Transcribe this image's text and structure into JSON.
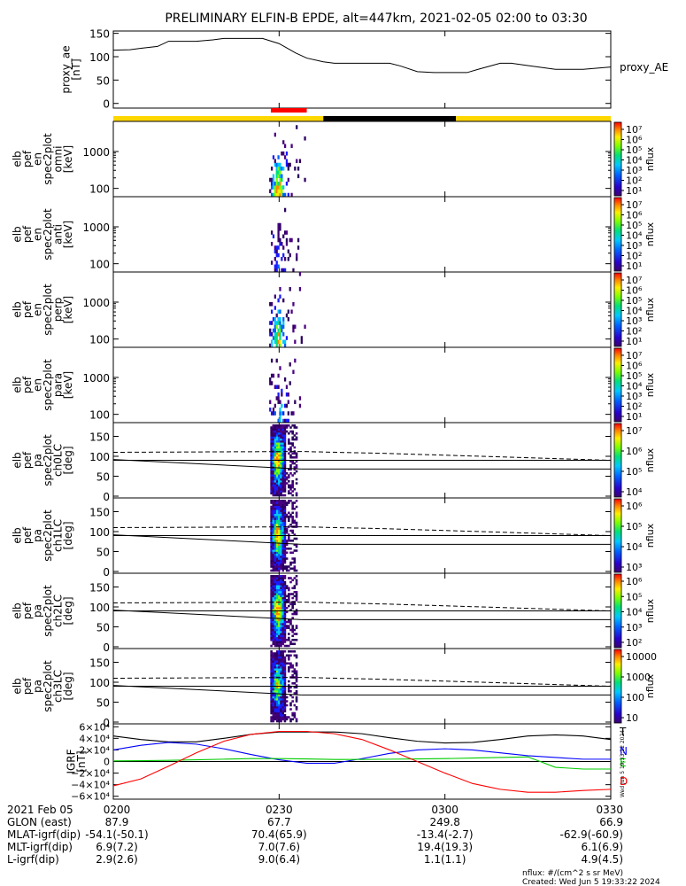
{
  "title": "PRELIMINARY ELFIN-B EPDE, alt=447km, 2021-02-05 02:00 to 03:30",
  "chart_data": {
    "type": "multi-panel time series / spectrograms",
    "time_range_minutes": [
      0,
      90
    ],
    "time_ticks": [
      {
        "t": 0,
        "label": "0200"
      },
      {
        "t": 30,
        "label": "0230"
      },
      {
        "t": 60,
        "label": "0300"
      },
      {
        "t": 90,
        "label": "0330"
      }
    ],
    "proxy_ae": {
      "ylabel": [
        "proxy_ae",
        "[nT]"
      ],
      "right_label": "proxy_AE",
      "ylim": [
        -10,
        155
      ],
      "yticks": [
        "0",
        "50",
        "100",
        "150"
      ],
      "yticks_values": [
        0,
        50,
        100,
        150
      ],
      "x": [
        0,
        3,
        5,
        8,
        10,
        15,
        18,
        20,
        22,
        25,
        27,
        30,
        33,
        35,
        38,
        40,
        45,
        47,
        50,
        52,
        55,
        58,
        60,
        62,
        64,
        66,
        70,
        72,
        75,
        80,
        85,
        90
      ],
      "y": [
        114,
        115,
        118,
        122,
        133,
        133,
        136,
        139,
        139,
        139,
        139,
        128,
        108,
        97,
        89,
        86,
        86,
        86,
        86,
        80,
        68,
        66,
        66,
        66,
        66,
        73,
        86,
        86,
        81,
        73,
        73,
        78
      ]
    },
    "colorbar_labels": {
      "energy": [
        "10⁷",
        "10⁶",
        "10⁵",
        "10⁴",
        "10³",
        "10²",
        "10¹"
      ],
      "pa0": [
        "10⁷",
        "10⁶",
        "10⁵",
        "10⁴"
      ],
      "pa1": [
        "10⁶",
        "10⁵",
        "10⁴",
        "10³"
      ],
      "pa2": [
        "10⁶",
        "10⁵",
        "10⁴",
        "10³",
        "10²"
      ],
      "pa3": [
        "10000",
        "1000",
        "100",
        "10"
      ]
    },
    "units_label": "nflux",
    "energy_panels": [
      {
        "ylabel": [
          "elb",
          "pef",
          "en",
          "spec2plot",
          "omni",
          "[keV]"
        ],
        "yticks": [
          "100",
          "1000"
        ]
      },
      {
        "ylabel": [
          "elb",
          "pef",
          "en",
          "spec2plot",
          "anti",
          "[keV]"
        ],
        "yticks": [
          "100",
          "1000"
        ]
      },
      {
        "ylabel": [
          "elb",
          "pef",
          "en",
          "spec2plot",
          "perp",
          "[keV]"
        ],
        "yticks": [
          "100",
          "1000"
        ]
      },
      {
        "ylabel": [
          "elb",
          "pef",
          "en",
          "spec2plot",
          "para",
          "[keV]"
        ],
        "yticks": [
          "100",
          "1000"
        ]
      }
    ],
    "pa_panels": [
      {
        "ylabel": [
          "elb",
          "pef",
          "pa",
          "spec2plot",
          "ch0LC",
          "[deg]"
        ],
        "yticks": [
          "0",
          "50",
          "100",
          "150"
        ]
      },
      {
        "ylabel": [
          "elb",
          "pef",
          "pa",
          "spec2plot",
          "ch1LC",
          "[deg]"
        ],
        "yticks": [
          "0",
          "50",
          "100",
          "150"
        ]
      },
      {
        "ylabel": [
          "elb",
          "pef",
          "pa",
          "spec2plot",
          "ch2LC",
          "[deg]"
        ],
        "yticks": [
          "0",
          "50",
          "100",
          "150"
        ]
      },
      {
        "ylabel": [
          "elb",
          "pef",
          "pa",
          "spec2plot",
          "ch3LC",
          "[deg]"
        ],
        "yticks": [
          "0",
          "50",
          "100",
          "150"
        ]
      }
    ],
    "pa_range": [
      0,
      180
    ],
    "loss_cone_lines": {
      "solid": {
        "start": 92,
        "end": 68
      },
      "dashed": {
        "start": 110,
        "mid_t": 50,
        "mid": 107,
        "end": 90
      },
      "horizontal": 90
    },
    "igrf": {
      "ylabel": [
        "IGRF",
        "[nT]"
      ],
      "ylim": [
        -65000,
        65000
      ],
      "yticks": [
        "−6×10⁴",
        "−4×10⁴",
        "−2×10⁴",
        "0",
        "2×10⁴",
        "4×10⁴",
        "6×10⁴"
      ],
      "yticks_values": [
        -60000,
        -40000,
        -20000,
        0,
        20000,
        40000,
        60000
      ],
      "legend": [
        "T",
        "N",
        "E",
        "D"
      ],
      "colors": {
        "T": "#000000",
        "N": "#0000ff",
        "E": "#00cc00",
        "D": "#ff0000"
      },
      "x": [
        0,
        5,
        10,
        15,
        20,
        25,
        30,
        35,
        40,
        45,
        50,
        55,
        60,
        65,
        70,
        75,
        80,
        85,
        90
      ],
      "T": [
        44000,
        38000,
        34000,
        34000,
        40000,
        47000,
        51000,
        51000,
        51000,
        48000,
        41000,
        35000,
        32000,
        33000,
        38000,
        44000,
        46000,
        44000,
        38000
      ],
      "N": [
        20000,
        28000,
        33000,
        30000,
        22000,
        12000,
        3000,
        -3000,
        -3000,
        5000,
        14000,
        20000,
        22000,
        20000,
        15000,
        10000,
        7000,
        4000,
        4000
      ],
      "E": [
        1000,
        1500,
        2000,
        3000,
        4000,
        5000,
        5000,
        4500,
        3500,
        3500,
        4000,
        4500,
        5000,
        6000,
        7000,
        8000,
        -10000,
        -13000,
        -13000
      ],
      "D": [
        -42000,
        -30000,
        -8000,
        15000,
        35000,
        47000,
        52000,
        52000,
        48000,
        38000,
        20000,
        0,
        -20000,
        -38000,
        -48000,
        -53000,
        -53000,
        -50000,
        -48000
      ]
    },
    "ephemeris": {
      "rows": [
        {
          "label": "2021 Feb 05",
          "values": [
            "0200",
            "0230",
            "0300",
            "0330"
          ]
        },
        {
          "label": "GLON (east)",
          "values": [
            "87.9",
            "67.7",
            "249.8",
            "66.9"
          ]
        },
        {
          "label": "MLAT-igrf(dip)",
          "values": [
            "-54.1(-50.1)",
            "70.4(65.9)",
            "-13.4(-2.7)",
            "-62.9(-60.9)"
          ]
        },
        {
          "label": "MLT-igrf(dip)",
          "values": [
            "6.9(7.2)",
            "7.0(7.6)",
            "19.4(19.3)",
            "6.1(6.9)"
          ]
        },
        {
          "label": "L-igrf(dip)",
          "values": [
            "2.9(2.6)",
            "9.0(6.4)",
            "1.1(1.1)",
            "4.9(4.5)"
          ]
        }
      ]
    },
    "footer": [
      "nflux: #/(cm^2 s sr MeV)",
      "Created: Wed Jun  5 19:33:22 2024"
    ],
    "side_stamp": "Wed Jun  5 19:33:22 2024",
    "sun_bar": {
      "segments": [
        {
          "from": 0,
          "to": 38,
          "color": "#ffd700"
        },
        {
          "from": 38,
          "to": 62,
          "color": "#000000"
        },
        {
          "from": 62,
          "to": 90,
          "color": "#ffd700"
        }
      ]
    },
    "science_zone": {
      "from": 28.5,
      "to": 35,
      "color": "#ff0000"
    }
  }
}
